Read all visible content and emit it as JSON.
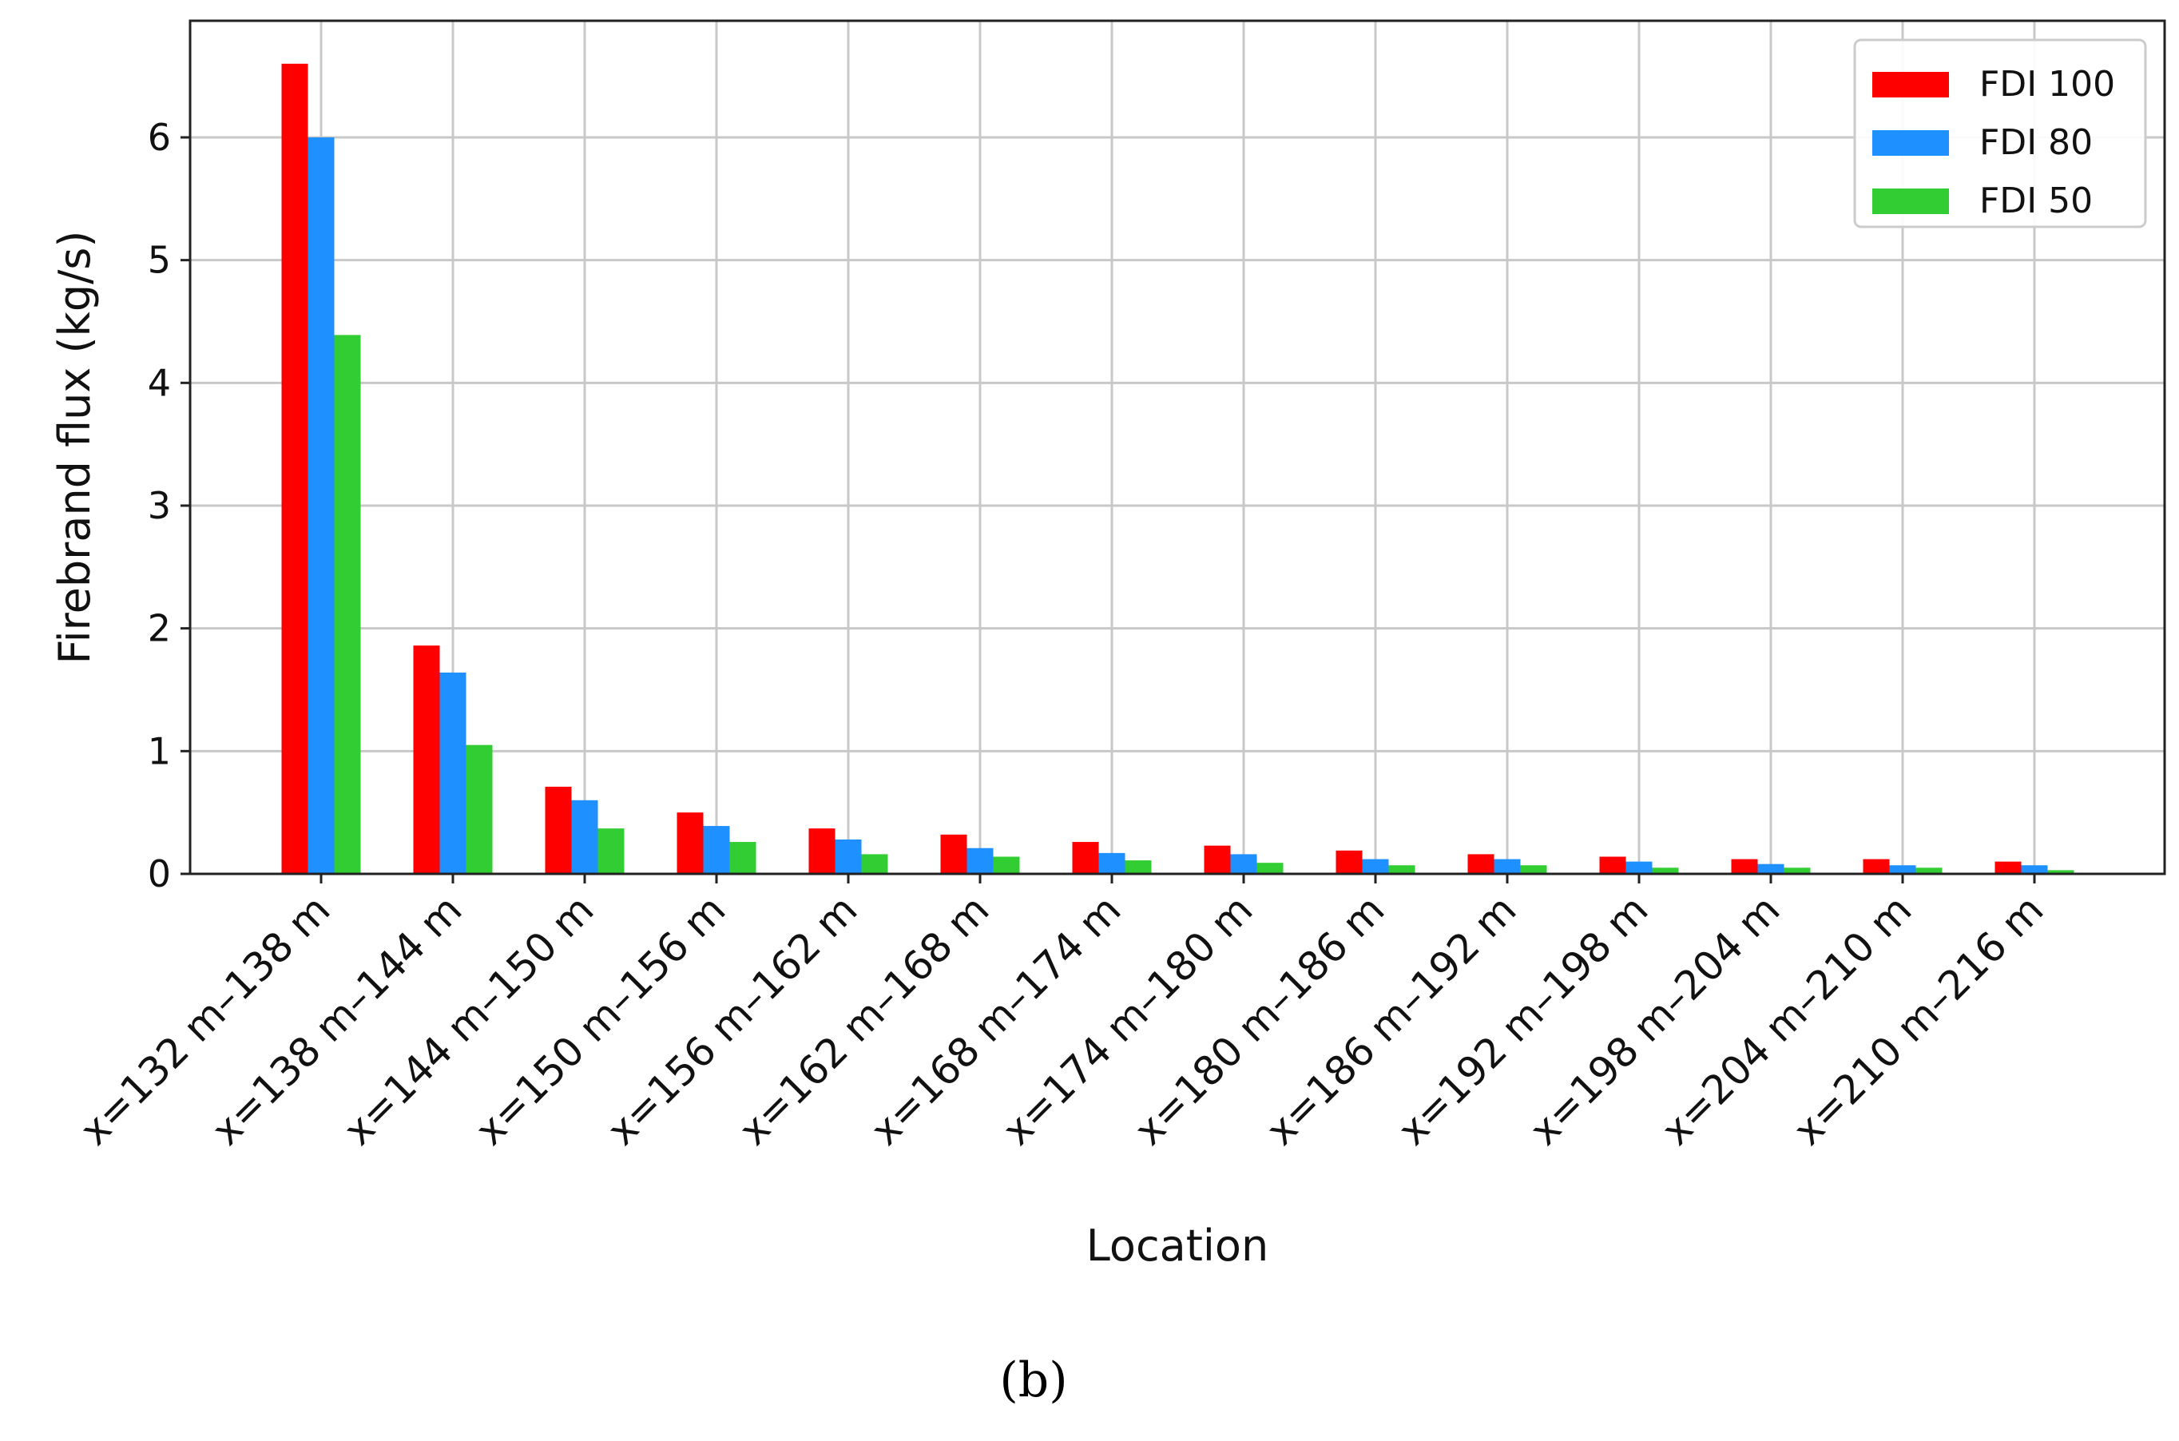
{
  "chart_data": {
    "type": "bar",
    "xlabel": "Location",
    "ylabel": "Firebrand flux (kg/s)",
    "ylim": [
      0,
      6.95
    ],
    "yticks": [
      0,
      1,
      2,
      3,
      4,
      5,
      6
    ],
    "grid": true,
    "legend_position": "top-right",
    "categories": [
      "x=132 m–138 m",
      "x=138 m–144 m",
      "x=144 m–150 m",
      "x=150 m–156 m",
      "x=156 m–162 m",
      "x=162 m–168 m",
      "x=168 m–174 m",
      "x=174 m–180 m",
      "x=180 m–186 m",
      "x=186 m–192 m",
      "x=192 m–198 m",
      "x=198 m–204 m",
      "x=204 m–210 m",
      "x=210 m–216 m"
    ],
    "series": [
      {
        "name": "FDI 100",
        "color": "#ff0000",
        "values": [
          6.6,
          1.86,
          0.71,
          0.5,
          0.37,
          0.32,
          0.26,
          0.23,
          0.19,
          0.16,
          0.14,
          0.12,
          0.12,
          0.1
        ]
      },
      {
        "name": "FDI 80",
        "color": "#1e90ff",
        "values": [
          6.0,
          1.64,
          0.6,
          0.39,
          0.28,
          0.21,
          0.17,
          0.16,
          0.12,
          0.12,
          0.1,
          0.08,
          0.07,
          0.07
        ]
      },
      {
        "name": "FDI 50",
        "color": "#32cd32",
        "values": [
          4.39,
          1.05,
          0.37,
          0.26,
          0.16,
          0.14,
          0.11,
          0.09,
          0.07,
          0.07,
          0.05,
          0.05,
          0.05,
          0.03
        ]
      }
    ]
  },
  "panel_label": "(b)"
}
